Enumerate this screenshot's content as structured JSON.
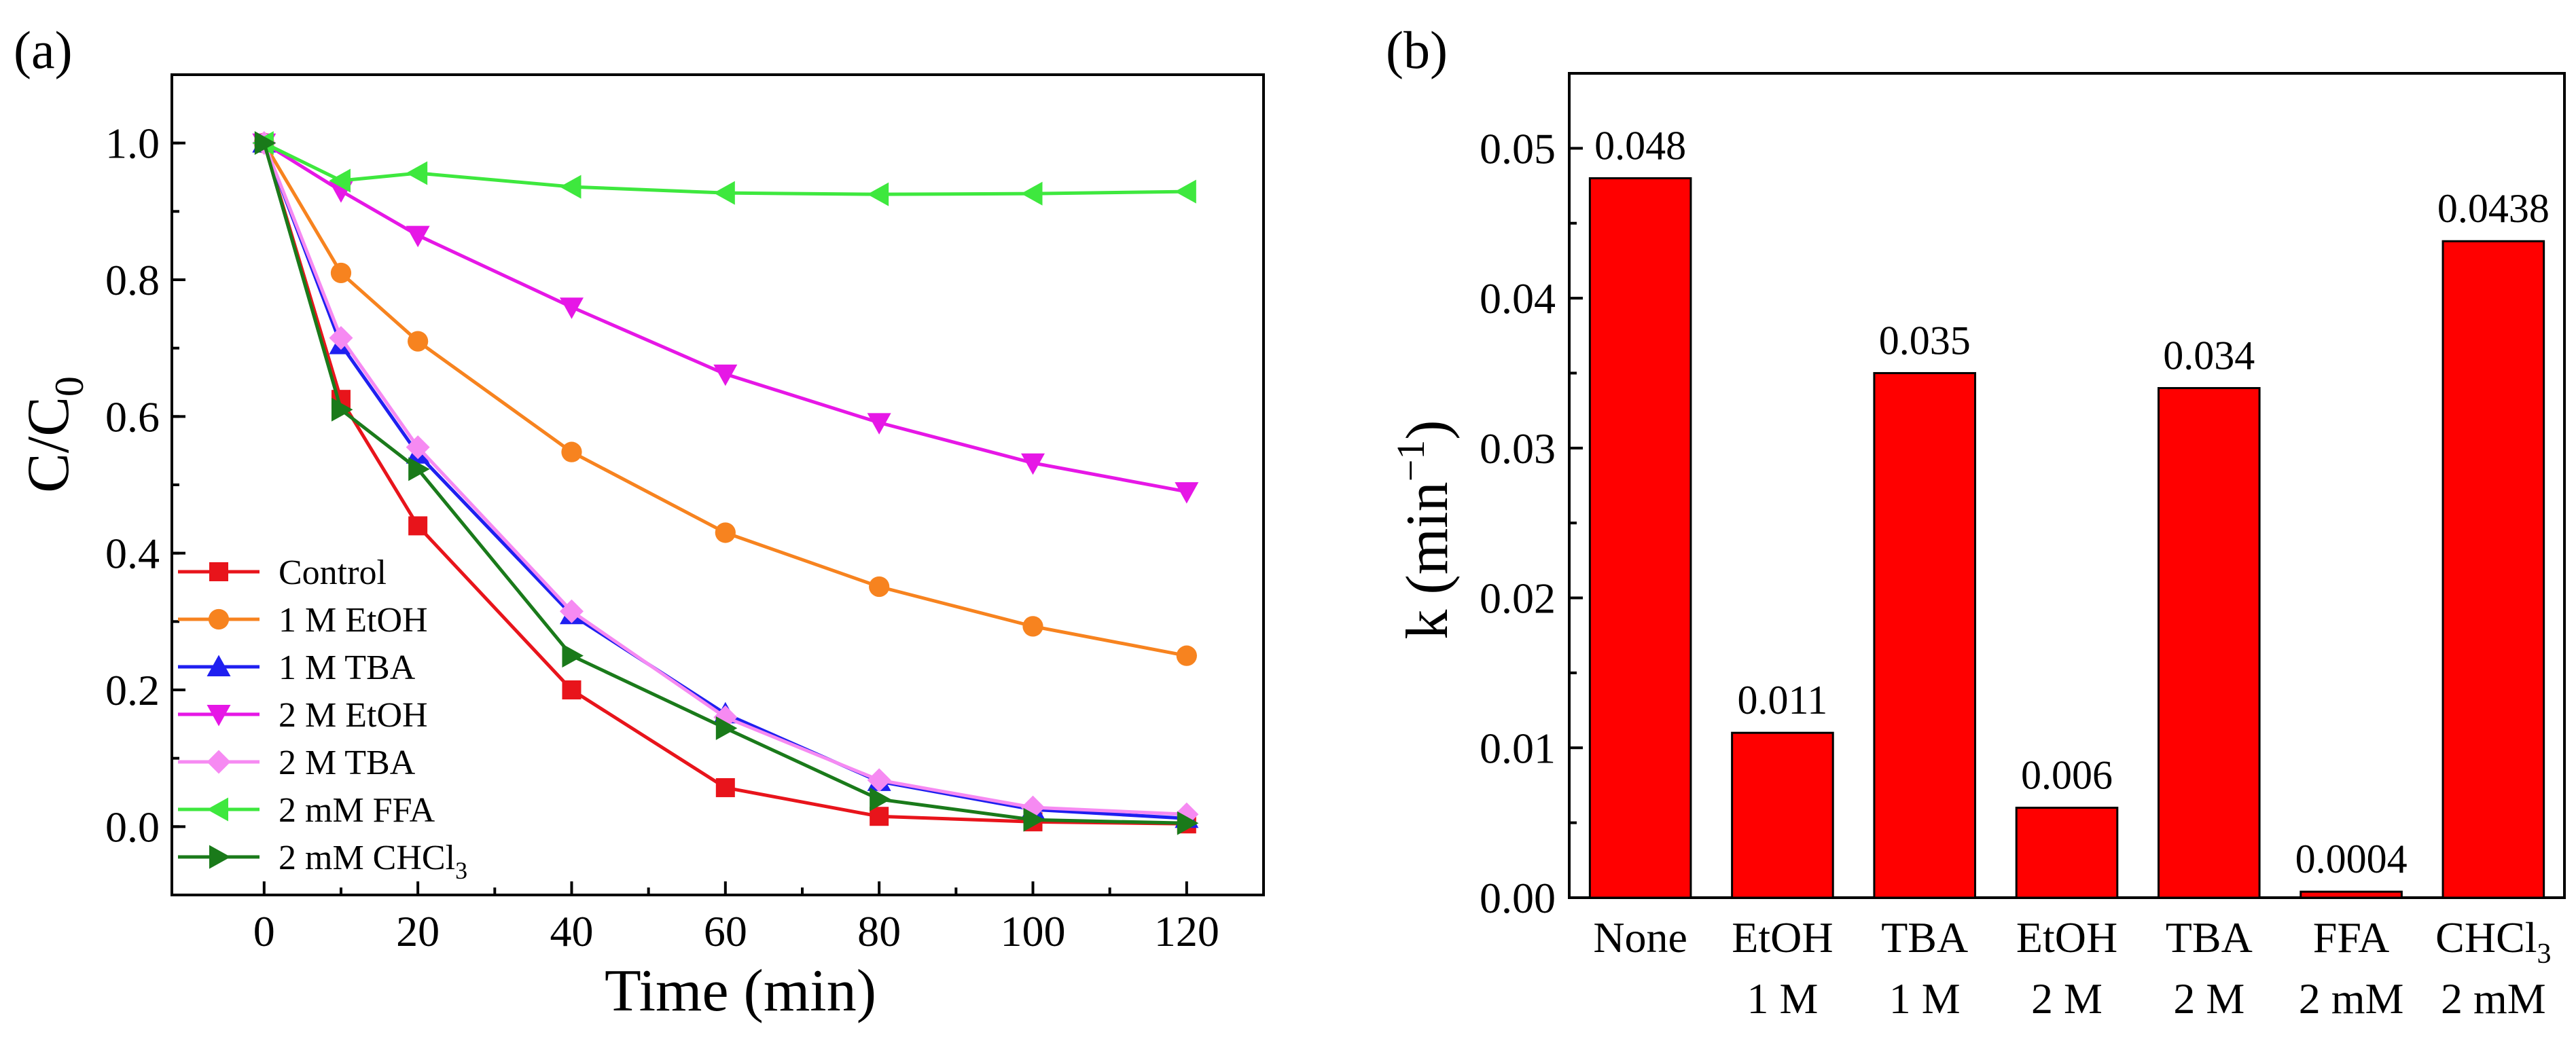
{
  "chart_data": [
    {
      "type": "line",
      "panel_label": "(a)",
      "xlabel": "Time (min)",
      "ylabel": {
        "main": "C/C",
        "sub": "0"
      },
      "xlim": [
        -12,
        130
      ],
      "ylim": [
        -0.1,
        1.1
      ],
      "xticks": [
        0,
        20,
        40,
        60,
        80,
        100,
        120
      ],
      "xtick_labels": [
        "0",
        "20",
        "40",
        "60",
        "80",
        "100",
        "120"
      ],
      "yticks": [
        0.0,
        0.2,
        0.4,
        0.6,
        0.8,
        1.0
      ],
      "ytick_labels": [
        "0.0",
        "0.2",
        "0.4",
        "0.6",
        "0.8",
        "1.0"
      ],
      "x": [
        0,
        10,
        20,
        40,
        60,
        80,
        100,
        120
      ],
      "legend_position": "bottom-left",
      "series": [
        {
          "name": "Control",
          "color": "#e8141b",
          "marker": "square",
          "values": [
            1.0,
            0.625,
            0.44,
            0.2,
            0.057,
            0.015,
            0.007,
            0.004
          ]
        },
        {
          "name": "1 M EtOH",
          "color": "#f7831f",
          "marker": "circle",
          "values": [
            1.0,
            0.81,
            0.71,
            0.548,
            0.43,
            0.351,
            0.293,
            0.25
          ]
        },
        {
          "name": "1 M TBA",
          "color": "#1f1ff0",
          "marker": "triangle-up",
          "values": [
            1.0,
            0.705,
            0.545,
            0.31,
            0.165,
            0.066,
            0.025,
            0.012
          ]
        },
        {
          "name": "2 M EtOH",
          "color": "#e617e6",
          "marker": "triangle-down",
          "values": [
            1.0,
            0.93,
            0.865,
            0.76,
            0.662,
            0.591,
            0.532,
            0.49
          ]
        },
        {
          "name": "2 M TBA",
          "color": "#f68af2",
          "marker": "diamond",
          "values": [
            1.0,
            0.715,
            0.555,
            0.315,
            0.16,
            0.068,
            0.028,
            0.018
          ]
        },
        {
          "name": "2 mM FFA",
          "color": "#3ee83e",
          "marker": "triangle-left",
          "values": [
            1.0,
            0.945,
            0.956,
            0.936,
            0.927,
            0.925,
            0.926,
            0.929
          ]
        },
        {
          "name": "2 mM CHCl",
          "name_sub": "3",
          "color": "#1a7a1a",
          "marker": "triangle-right",
          "values": [
            1.0,
            0.61,
            0.523,
            0.25,
            0.144,
            0.04,
            0.01,
            0.005
          ]
        }
      ]
    },
    {
      "type": "bar",
      "panel_label": "(b)",
      "ylabel": {
        "main": "k (min",
        "sup": "−1",
        "end": ")"
      },
      "ylim": [
        0,
        0.055
      ],
      "yticks": [
        0.0,
        0.01,
        0.02,
        0.03,
        0.04,
        0.05
      ],
      "ytick_labels": [
        "0.00",
        "0.01",
        "0.02",
        "0.03",
        "0.04",
        "0.05"
      ],
      "bar_color": "#ff0000",
      "categories": [
        {
          "line1": "None",
          "line2": ""
        },
        {
          "line1": "EtOH",
          "line2": "1 M"
        },
        {
          "line1": "TBA",
          "line2": "1 M"
        },
        {
          "line1": "EtOH",
          "line2": "2 M"
        },
        {
          "line1": "TBA",
          "line2": "2 M"
        },
        {
          "line1": "FFA",
          "line2": "2 mM"
        },
        {
          "line1": "CHCl",
          "line1_sub": "3",
          "line2": "2 mM"
        }
      ],
      "values": [
        0.048,
        0.011,
        0.035,
        0.006,
        0.034,
        0.0004,
        0.0438
      ],
      "data_labels": [
        "0.048",
        "0.011",
        "0.035",
        "0.006",
        "0.034",
        "0.0004",
        "0.0438"
      ]
    }
  ]
}
